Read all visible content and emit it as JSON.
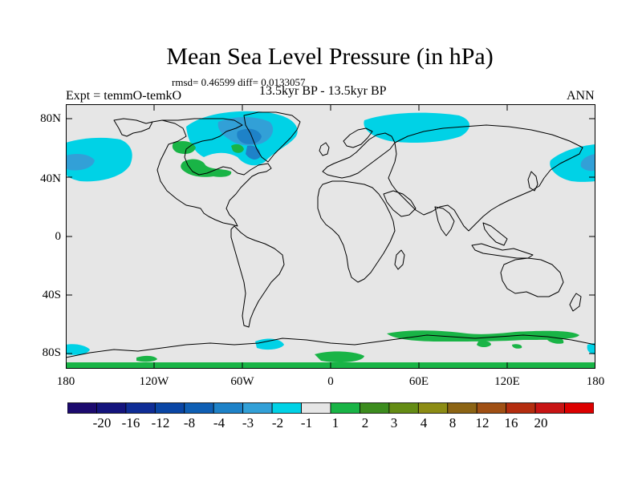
{
  "title": "Mean Sea Level Pressure (in hPa)",
  "stats": "rmsd= 0.46599 diff= 0.0133057",
  "experiment": "Expt = temmO-temkO",
  "period": "13.5kyr BP - 13.5kyr BP",
  "season": "ANN",
  "axes": {
    "y_ticks": [
      "80N",
      "40N",
      "0",
      "40S",
      "80S"
    ],
    "x_ticks": [
      "180",
      "120W",
      "60W",
      "0",
      "60E",
      "120E",
      "180"
    ]
  },
  "colorbar": {
    "colors": [
      "#1c0a6e",
      "#14147d",
      "#0f2d96",
      "#0a46a5",
      "#0f5fb4",
      "#1e82c8",
      "#32a0d7",
      "#00d2e6",
      "#e6e6e6",
      "#19b446",
      "#3c8c1e",
      "#648c14",
      "#8c8c14",
      "#8c6414",
      "#a05014",
      "#b42d0f",
      "#c81414",
      "#dc0000"
    ],
    "labels": [
      "-20",
      "-16",
      "-12",
      "-8",
      "-4",
      "-3",
      "-2",
      "-1",
      "1",
      "2",
      "3",
      "4",
      "8",
      "12",
      "16",
      "20"
    ]
  },
  "field_colors": {
    "background": "#e6e6e6",
    "neg1": "#00d2e6",
    "neg2": "#32a0d7",
    "neg3": "#1e82c8",
    "pos1": "#19b446"
  }
}
